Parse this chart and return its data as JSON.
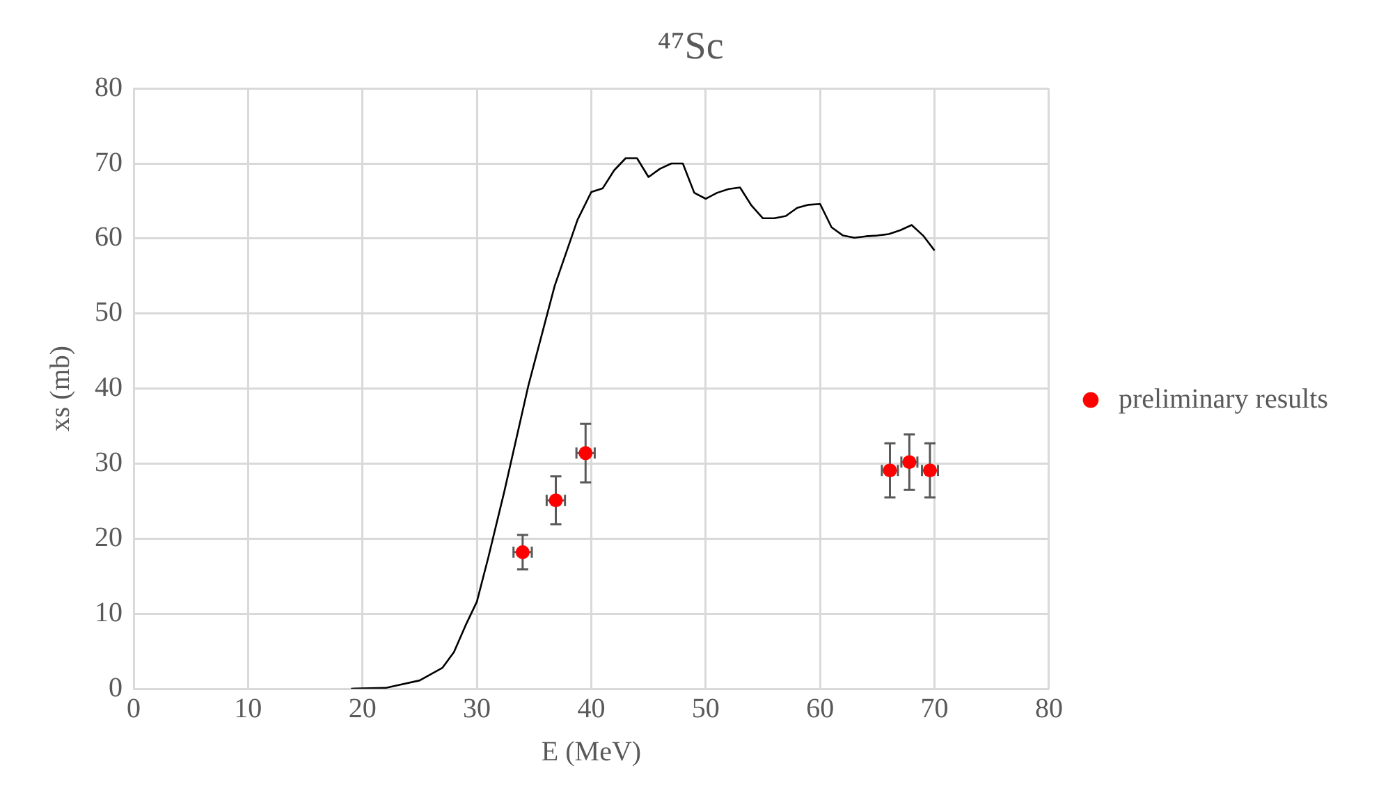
{
  "chart_data": {
    "type": "line",
    "title": "⁴⁷Sc",
    "xlabel": "E (MeV)",
    "ylabel": "xs (mb)",
    "xlim": [
      0,
      80
    ],
    "xticks": [
      0,
      10,
      20,
      30,
      40,
      50,
      60,
      70,
      80
    ],
    "ylim": [
      0,
      80
    ],
    "yticks": [
      0,
      10,
      20,
      30,
      40,
      50,
      60,
      70,
      80
    ],
    "grid": true,
    "legend": "right",
    "series": [
      {
        "color": "#000000",
        "marker": "none",
        "x": [
          19,
          22,
          25,
          27,
          28,
          29,
          30,
          31,
          32.4,
          34.5,
          36.8,
          38.8,
          40,
          41,
          42,
          43,
          44,
          45,
          46,
          47,
          48,
          49,
          50,
          51,
          52,
          53,
          54,
          55,
          56,
          57,
          58,
          59,
          60,
          61,
          62,
          63,
          64,
          65,
          66,
          67,
          68,
          69,
          70
        ],
        "values": [
          0,
          0.1,
          1.1,
          2.8,
          4.9,
          8.4,
          11.6,
          17.5,
          26.3,
          40.4,
          53.7,
          62.5,
          66.2,
          66.7,
          69.1,
          70.7,
          70.7,
          68.2,
          69.3,
          70,
          70,
          66.1,
          65.3,
          66.1,
          66.6,
          66.8,
          64.4,
          62.7,
          62.7,
          63,
          64.1,
          64.5,
          64.6,
          61.5,
          60.4,
          60.1,
          60.3,
          60.4,
          60.6,
          61.1,
          61.8,
          60.4,
          58.4
        ]
      },
      {
        "type": "scatter",
        "name": "preliminary results",
        "color": "#ff0000",
        "marker": "circle",
        "x": [
          34,
          36.9,
          39.5,
          66.1,
          67.8,
          69.6
        ],
        "values": [
          18.2,
          25.1,
          31.4,
          29.1,
          30.2,
          29.1
        ],
        "errors": [
          2.3,
          3.2,
          3.9,
          3.6,
          3.7,
          3.6
        ],
        "xerrors": [
          0.8,
          0.8,
          0.8,
          0.7,
          0.7,
          0.7
        ]
      }
    ]
  }
}
